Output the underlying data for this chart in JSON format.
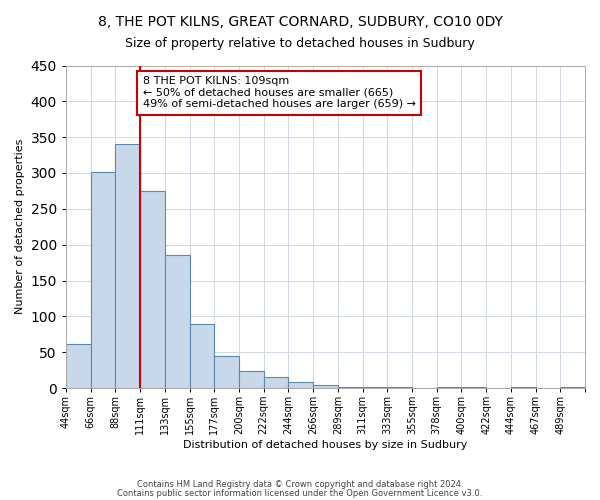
{
  "title": "8, THE POT KILNS, GREAT CORNARD, SUDBURY, CO10 0DY",
  "subtitle": "Size of property relative to detached houses in Sudbury",
  "xlabel": "Distribution of detached houses by size in Sudbury",
  "ylabel": "Number of detached properties",
  "bar_color": "#c8d8e8",
  "bar_edge_color": "#5a8ab0",
  "bar_values": [
    62,
    301,
    341,
    275,
    185,
    90,
    45,
    24,
    16,
    8,
    4,
    2,
    1,
    1,
    0,
    1,
    1,
    0,
    1,
    0,
    1
  ],
  "bin_labels": [
    "44sqm",
    "66sqm",
    "88sqm",
    "111sqm",
    "133sqm",
    "155sqm",
    "177sqm",
    "200sqm",
    "222sqm",
    "244sqm",
    "266sqm",
    "289sqm",
    "311sqm",
    "333sqm",
    "355sqm",
    "378sqm",
    "400sqm",
    "422sqm",
    "444sqm",
    "467sqm",
    "489sqm"
  ],
  "vline_color": "#cc0000",
  "vline_pos": 3.0,
  "ylim": [
    0,
    450
  ],
  "yticks": [
    0,
    50,
    100,
    150,
    200,
    250,
    300,
    350,
    400,
    450
  ],
  "annotation_title": "8 THE POT KILNS: 109sqm",
  "annotation_line1": "← 50% of detached houses are smaller (665)",
  "annotation_line2": "49% of semi-detached houses are larger (659) →",
  "annotation_box_color": "#ffffff",
  "annotation_box_edge": "#cc0000",
  "footer1": "Contains HM Land Registry data © Crown copyright and database right 2024.",
  "footer2": "Contains public sector information licensed under the Open Government Licence v3.0.",
  "background_color": "#ffffff",
  "grid_color": "#d0d8e4"
}
